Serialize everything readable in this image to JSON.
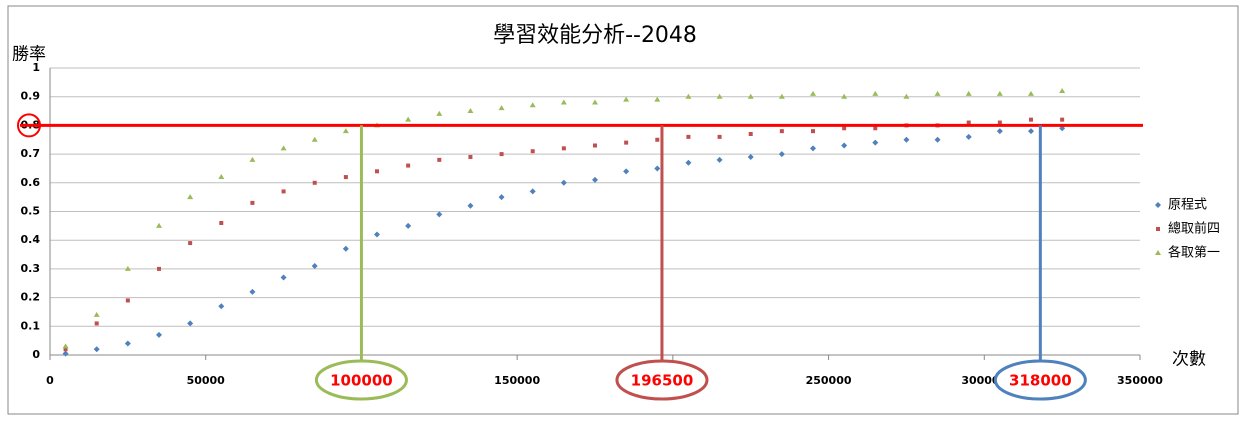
{
  "chart_data": {
    "type": "scatter",
    "title": "學習效能分析--2048",
    "y_label": "勝率",
    "x_label": "次數",
    "x": [
      5000,
      15000,
      25000,
      35000,
      45000,
      55000,
      65000,
      75000,
      85000,
      95000,
      105000,
      115000,
      125000,
      135000,
      145000,
      155000,
      165000,
      175000,
      185000,
      195000,
      205000,
      215000,
      225000,
      235000,
      245000,
      255000,
      265000,
      275000,
      285000,
      295000,
      305000,
      315000,
      325000
    ],
    "series": [
      {
        "name": "原程式",
        "color": "#4f81bd",
        "marker": "diamond",
        "values": [
          0.005,
          0.02,
          0.04,
          0.07,
          0.11,
          0.17,
          0.22,
          0.27,
          0.31,
          0.37,
          0.42,
          0.45,
          0.49,
          0.52,
          0.55,
          0.57,
          0.6,
          0.61,
          0.64,
          0.65,
          0.67,
          0.68,
          0.69,
          0.7,
          0.72,
          0.73,
          0.74,
          0.75,
          0.75,
          0.76,
          0.78,
          0.78,
          0.79
        ]
      },
      {
        "name": "總取前四",
        "color": "#c0504d",
        "marker": "square",
        "values": [
          0.02,
          0.11,
          0.19,
          0.3,
          0.39,
          0.46,
          0.53,
          0.57,
          0.6,
          0.62,
          0.64,
          0.66,
          0.68,
          0.69,
          0.7,
          0.71,
          0.72,
          0.73,
          0.74,
          0.75,
          0.76,
          0.76,
          0.77,
          0.78,
          0.78,
          0.79,
          0.79,
          0.8,
          0.8,
          0.81,
          0.81,
          0.82,
          0.82
        ]
      },
      {
        "name": "各取第一",
        "color": "#9bbb59",
        "marker": "triangle",
        "values": [
          0.03,
          0.14,
          0.3,
          0.45,
          0.55,
          0.62,
          0.68,
          0.72,
          0.75,
          0.78,
          0.8,
          0.82,
          0.84,
          0.85,
          0.86,
          0.87,
          0.88,
          0.88,
          0.89,
          0.89,
          0.9,
          0.9,
          0.9,
          0.9,
          0.91,
          0.9,
          0.91,
          0.9,
          0.91,
          0.91,
          0.91,
          0.91,
          0.92
        ]
      }
    ],
    "xlim": [
      0,
      350000
    ],
    "xticks": [
      0,
      50000,
      100000,
      150000,
      200000,
      250000,
      300000,
      350000
    ],
    "ylim": [
      0,
      1
    ],
    "yticks": [
      0,
      0.1,
      0.2,
      0.3,
      0.4,
      0.5,
      0.6,
      0.7,
      0.8,
      0.9,
      1
    ],
    "grid": true,
    "legend": "right",
    "hline": {
      "value": 0.8,
      "color": "#ff0000"
    },
    "markers": [
      {
        "x": 100000,
        "color": "#9bbb59"
      },
      {
        "x": 196500,
        "color": "#c0504d"
      },
      {
        "x": 318000,
        "color": "#4f81bd"
      }
    ]
  }
}
